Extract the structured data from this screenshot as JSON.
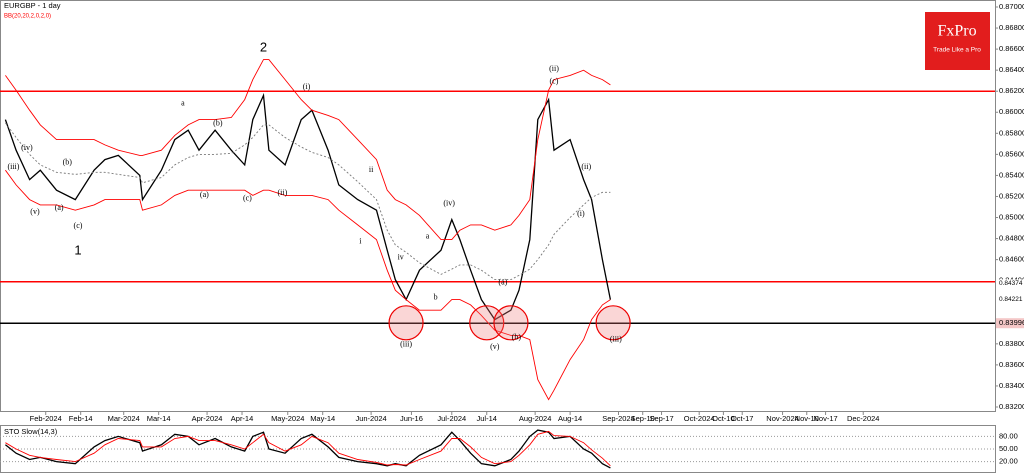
{
  "chart_data": [
    {
      "type": "line",
      "title": "EURGBP - 1 day",
      "subtitle": "BB(20,20,2,0,2,0)",
      "logo": "FxPro",
      "tagline": "Trade Like a Pro",
      "x": [
        "2024-01-17",
        "2024-01-21",
        "2024-01-26",
        "2024-01-30",
        "2024-02-05",
        "2024-02-12",
        "2024-02-19",
        "2024-02-23",
        "2024-02-28",
        "2024-03-07",
        "2024-03-08",
        "2024-03-15",
        "2024-03-20",
        "2024-03-25",
        "2024-03-29",
        "2024-04-04",
        "2024-04-10",
        "2024-04-15",
        "2024-04-18",
        "2024-04-22",
        "2024-04-24",
        "2024-04-30",
        "2024-05-06",
        "2024-05-10",
        "2024-05-16",
        "2024-05-20",
        "2024-05-27",
        "2024-06-03",
        "2024-06-07",
        "2024-06-10",
        "2024-06-14",
        "2024-06-19",
        "2024-06-27",
        "2024-07-01",
        "2024-07-04",
        "2024-07-08",
        "2024-07-12",
        "2024-07-17",
        "2024-07-23",
        "2024-07-26",
        "2024-07-30",
        "2024-08-02",
        "2024-08-06",
        "2024-08-08",
        "2024-08-14",
        "2024-08-19",
        "2024-08-22",
        "2024-08-26",
        "2024-08-29"
      ],
      "series": [
        {
          "name": "EURGBP",
          "color": "#000000",
          "values": [
            0.8593,
            0.8564,
            0.8536,
            0.8545,
            0.8526,
            0.8517,
            0.8545,
            0.8555,
            0.8559,
            0.854,
            0.8517,
            0.8545,
            0.8574,
            0.8583,
            0.8564,
            0.8583,
            0.8564,
            0.855,
            0.8593,
            0.8616,
            0.8564,
            0.855,
            0.8593,
            0.8602,
            0.8564,
            0.8531,
            0.8517,
            0.8507,
            0.8469,
            0.8441,
            0.8422,
            0.845,
            0.8469,
            0.8498,
            0.8479,
            0.845,
            0.8422,
            0.8403,
            0.8412,
            0.8431,
            0.8479,
            0.8593,
            0.8612,
            0.8564,
            0.8574,
            0.8536,
            0.8517,
            0.846,
            0.8422
          ]
        },
        {
          "name": "BB upper",
          "color": "#ff0000",
          "values": [
            0.8635,
            0.8621,
            0.8602,
            0.8588,
            0.8574,
            0.8574,
            0.8574,
            0.8569,
            0.8564,
            0.8559,
            0.8559,
            0.8564,
            0.8578,
            0.8588,
            0.8593,
            0.8593,
            0.8595,
            0.8612,
            0.8631,
            0.865,
            0.865,
            0.8631,
            0.8612,
            0.8602,
            0.8597,
            0.8593,
            0.8574,
            0.8555,
            0.8526,
            0.8517,
            0.8512,
            0.8502,
            0.8479,
            0.8479,
            0.8488,
            0.8493,
            0.8493,
            0.8488,
            0.8493,
            0.8502,
            0.8517,
            0.8574,
            0.8621,
            0.8631,
            0.8635,
            0.864,
            0.8635,
            0.8631,
            0.8626
          ]
        },
        {
          "name": "BB middle",
          "color": "#777777",
          "dashed": true,
          "values": [
            0.859,
            0.8576,
            0.856,
            0.855,
            0.8543,
            0.8541,
            0.8543,
            0.8543,
            0.8541,
            0.8538,
            0.8533,
            0.8538,
            0.855,
            0.8557,
            0.856,
            0.856,
            0.8561,
            0.8569,
            0.8576,
            0.8588,
            0.8588,
            0.8576,
            0.8567,
            0.8562,
            0.8557,
            0.855,
            0.8534,
            0.8517,
            0.8488,
            0.8474,
            0.8467,
            0.8457,
            0.8446,
            0.8451,
            0.8455,
            0.8455,
            0.845,
            0.8441,
            0.8441,
            0.8445,
            0.8451,
            0.846,
            0.8474,
            0.8484,
            0.85,
            0.8512,
            0.8519,
            0.8524,
            0.8524
          ]
        },
        {
          "name": "BB lower",
          "color": "#ff0000",
          "values": [
            0.8545,
            0.8531,
            0.8517,
            0.8512,
            0.8512,
            0.8507,
            0.8512,
            0.8517,
            0.8517,
            0.8517,
            0.8507,
            0.8512,
            0.8521,
            0.8526,
            0.8526,
            0.8526,
            0.8526,
            0.8526,
            0.8521,
            0.8526,
            0.8526,
            0.8521,
            0.8521,
            0.8521,
            0.8517,
            0.8507,
            0.8493,
            0.8479,
            0.845,
            0.8431,
            0.8422,
            0.8412,
            0.8412,
            0.8422,
            0.8422,
            0.8417,
            0.8407,
            0.8393,
            0.8388,
            0.8388,
            0.8384,
            0.8346,
            0.8327,
            0.8336,
            0.8365,
            0.8384,
            0.8403,
            0.8417,
            0.8422
          ]
        }
      ],
      "xlim": [
        "2024-01-15",
        "2025-01-19"
      ],
      "xticks": [
        {
          "value": "2024-02-01",
          "label": "Feb-2024"
        },
        {
          "value": "2024-02-14",
          "label": "Feb-14"
        },
        {
          "value": "2024-03-01",
          "label": "Mar-2024"
        },
        {
          "value": "2024-03-14",
          "label": "Mar-14"
        },
        {
          "value": "2024-04-01",
          "label": "Apr-2024"
        },
        {
          "value": "2024-04-14",
          "label": "Apr-14"
        },
        {
          "value": "2024-05-01",
          "label": "May-2024"
        },
        {
          "value": "2024-05-14",
          "label": "May-14"
        },
        {
          "value": "2024-06-01",
          "label": "Jun-2024"
        },
        {
          "value": "2024-06-16",
          "label": "Jun-16"
        },
        {
          "value": "2024-07-01",
          "label": "Jul-2024"
        },
        {
          "value": "2024-07-14",
          "label": "Jul-14"
        },
        {
          "value": "2024-08-01",
          "label": "Aug-2024"
        },
        {
          "value": "2024-08-14",
          "label": "Aug-14"
        },
        {
          "value": "2024-09-01",
          "label": "Sep-2024"
        },
        {
          "value": "2024-09-10",
          "label": "Sep-10"
        },
        {
          "value": "2024-09-17",
          "label": "Sep-17"
        },
        {
          "value": "2024-10-01",
          "label": "Oct-2024"
        },
        {
          "value": "2024-10-10",
          "label": "Oct-10"
        },
        {
          "value": "2024-10-17",
          "label": "Oct-17"
        },
        {
          "value": "2024-11-01",
          "label": "Nov-2024"
        },
        {
          "value": "2024-11-10",
          "label": "Nov-10"
        },
        {
          "value": "2024-11-17",
          "label": "Nov-17"
        },
        {
          "value": "2024-12-01",
          "label": "Dec-2024"
        }
      ],
      "ylim": [
        0.832,
        0.87
      ],
      "yticks": [
        {
          "value": 0.832,
          "label": "0.83200"
        },
        {
          "value": 0.834,
          "label": "0.83400"
        },
        {
          "value": 0.836,
          "label": "0.83600"
        },
        {
          "value": 0.838,
          "label": "0.83800"
        },
        {
          "value": 0.84,
          "label": "0.84000"
        },
        {
          "value": 0.842,
          "label": "0.84200"
        },
        {
          "value": 0.844,
          "label": "0.84400"
        },
        {
          "value": 0.846,
          "label": "0.84600"
        },
        {
          "value": 0.848,
          "label": "0.84800"
        },
        {
          "value": 0.85,
          "label": "0.85000"
        },
        {
          "value": 0.852,
          "label": "0.85200"
        },
        {
          "value": 0.854,
          "label": "0.85400"
        },
        {
          "value": 0.856,
          "label": "0.85600"
        },
        {
          "value": 0.858,
          "label": "0.85800"
        },
        {
          "value": 0.86,
          "label": "0.86000"
        },
        {
          "value": 0.862,
          "label": "0.86200"
        },
        {
          "value": 0.864,
          "label": "0.86400"
        },
        {
          "value": 0.866,
          "label": "0.86600"
        },
        {
          "value": 0.868,
          "label": "0.86800"
        },
        {
          "value": 0.87,
          "label": "0.87000"
        }
      ],
      "levels": [
        {
          "value": 0.862,
          "color": "#ff0000"
        },
        {
          "value": 0.8439,
          "color": "#ff0000"
        },
        {
          "value": 0.83996,
          "label": "0.83996",
          "color": "#000000"
        }
      ],
      "price_labels": [
        {
          "value": 0.84374,
          "label": "0.84374"
        },
        {
          "value": 0.84221,
          "label": "0.84221"
        }
      ],
      "highlights": [
        {
          "x": "2024-06-14",
          "y": 0.84
        },
        {
          "x": "2024-07-14",
          "y": 0.84
        },
        {
          "x": "2024-07-23",
          "y": 0.84
        },
        {
          "x": "2024-08-30",
          "y": 0.84
        }
      ],
      "annotations": [
        {
          "text": "(iii)",
          "x": "2024-01-20",
          "y": 0.8548
        },
        {
          "text": "(iv)",
          "x": "2024-01-25",
          "y": 0.8566
        },
        {
          "text": "(v)",
          "x": "2024-01-28",
          "y": 0.8505
        },
        {
          "text": "(a)",
          "x": "2024-02-06",
          "y": 0.8509
        },
        {
          "text": "(b)",
          "x": "2024-02-09",
          "y": 0.8552
        },
        {
          "text": "(c)",
          "x": "2024-02-13",
          "y": 0.8492
        },
        {
          "text": "1",
          "x": "2024-02-13",
          "y": 0.8468,
          "big": true
        },
        {
          "text": "a",
          "x": "2024-03-23",
          "y": 0.8608
        },
        {
          "text": "(a)",
          "x": "2024-03-31",
          "y": 0.8521
        },
        {
          "text": "(b)",
          "x": "2024-04-05",
          "y": 0.8589
        },
        {
          "text": "(c)",
          "x": "2024-04-16",
          "y": 0.8518
        },
        {
          "text": "2",
          "x": "2024-04-22",
          "y": 0.8661,
          "big": true
        },
        {
          "text": "(i)",
          "x": "2024-05-08",
          "y": 0.8624
        },
        {
          "text": "(ii)",
          "x": "2024-04-29",
          "y": 0.8523
        },
        {
          "text": "ii",
          "x": "2024-06-01",
          "y": 0.8545
        },
        {
          "text": "i",
          "x": "2024-05-28",
          "y": 0.8477
        },
        {
          "text": "iv",
          "x": "2024-06-12",
          "y": 0.8462
        },
        {
          "text": "a",
          "x": "2024-06-22",
          "y": 0.8482
        },
        {
          "text": "b",
          "x": "2024-06-25",
          "y": 0.8424
        },
        {
          "text": "(iii)",
          "x": "2024-06-14",
          "y": 0.8379
        },
        {
          "text": "(iv)",
          "x": "2024-06-30",
          "y": 0.8513
        },
        {
          "text": "(v)",
          "x": "2024-07-17",
          "y": 0.8377
        },
        {
          "text": "(a)",
          "x": "2024-07-20",
          "y": 0.8438
        },
        {
          "text": "(b)",
          "x": "2024-07-25",
          "y": 0.8386
        },
        {
          "text": "(c)",
          "x": "2024-08-08",
          "y": 0.8629
        },
        {
          "text": "(ii)",
          "x": "2024-08-08",
          "y": 0.8641
        },
        {
          "text": "(i)",
          "x": "2024-08-18",
          "y": 0.8503
        },
        {
          "text": "(ii)",
          "x": "2024-08-20",
          "y": 0.8548
        },
        {
          "text": "(iii)",
          "x": "2024-08-31",
          "y": 0.8384
        }
      ]
    },
    {
      "type": "line",
      "title": "STO Slow(14,3)",
      "series": [
        {
          "name": "Main",
          "color": "#000000",
          "values": [
            60,
            40,
            25,
            30,
            20,
            15,
            55,
            70,
            80,
            65,
            45,
            60,
            85,
            80,
            60,
            75,
            55,
            45,
            80,
            90,
            50,
            40,
            75,
            85,
            55,
            30,
            20,
            15,
            10,
            15,
            10,
            35,
            60,
            90,
            70,
            40,
            15,
            10,
            25,
            45,
            80,
            95,
            90,
            75,
            80,
            50,
            40,
            15,
            5
          ]
        },
        {
          "name": "Signal",
          "color": "#ff0000",
          "values": [
            65,
            50,
            35,
            30,
            25,
            20,
            40,
            60,
            75,
            70,
            55,
            55,
            75,
            80,
            70,
            70,
            60,
            50,
            65,
            85,
            65,
            45,
            60,
            80,
            65,
            40,
            25,
            18,
            12,
            13,
            12,
            25,
            45,
            75,
            75,
            55,
            30,
            15,
            20,
            35,
            60,
            85,
            92,
            82,
            80,
            65,
            48,
            28,
            10
          ]
        }
      ],
      "ylim": [
        0,
        100
      ],
      "yticks": [
        {
          "value": 20,
          "label": "20.00"
        },
        {
          "value": 50,
          "label": "50.00"
        },
        {
          "value": 80,
          "label": "80.00"
        }
      ]
    }
  ]
}
